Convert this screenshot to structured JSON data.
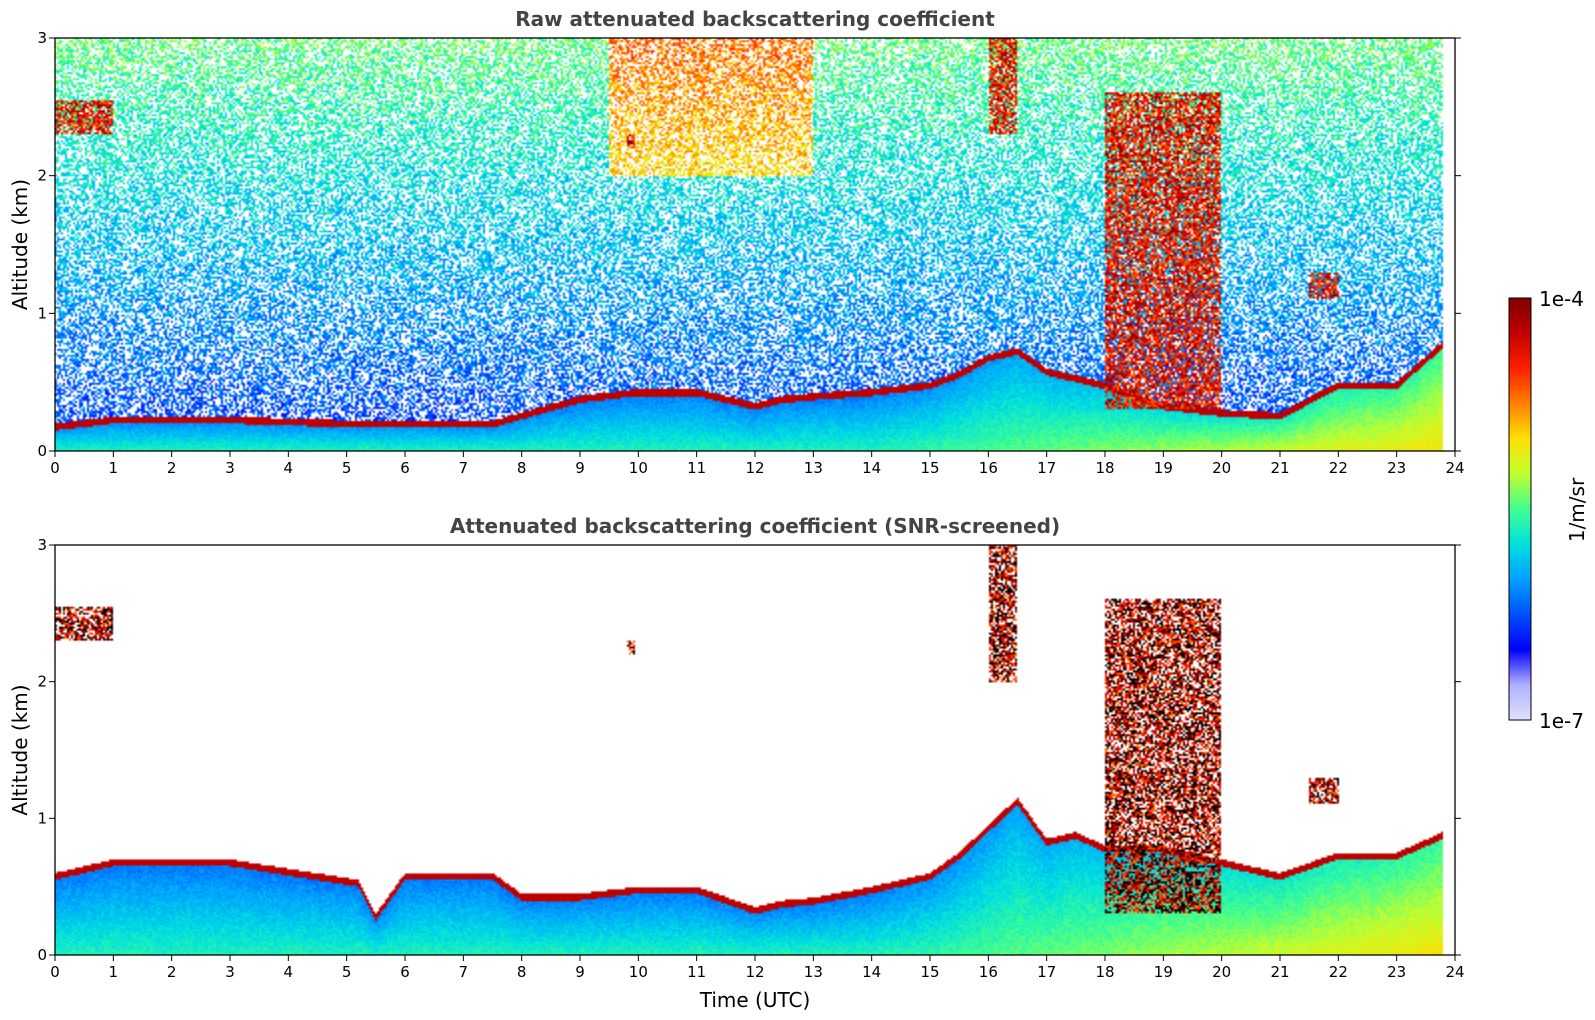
{
  "chart_data": [
    {
      "type": "heatmap",
      "title": "Raw attenuated backscattering coefficient",
      "xlabel": "",
      "ylabel": "Altitude (km)",
      "xlim": [
        0,
        24
      ],
      "ylim": [
        0,
        3
      ],
      "x_ticks": [
        0,
        1,
        2,
        3,
        4,
        5,
        6,
        7,
        8,
        9,
        10,
        11,
        12,
        13,
        14,
        15,
        16,
        17,
        18,
        19,
        20,
        21,
        22,
        23,
        24
      ],
      "y_ticks": [
        0,
        1,
        2,
        3
      ],
      "screened": false,
      "boundary_layer_top_km": [
        [
          0,
          0.2
        ],
        [
          1,
          0.25
        ],
        [
          3,
          0.25
        ],
        [
          5.2,
          0.22
        ],
        [
          5.5,
          0.22
        ],
        [
          6,
          0.22
        ],
        [
          7.5,
          0.22
        ],
        [
          8,
          0.28
        ],
        [
          9,
          0.4
        ],
        [
          10,
          0.45
        ],
        [
          11,
          0.45
        ],
        [
          12,
          0.35
        ],
        [
          12.5,
          0.4
        ],
        [
          13,
          0.42
        ],
        [
          14,
          0.45
        ],
        [
          15,
          0.5
        ],
        [
          15.5,
          0.58
        ],
        [
          16,
          0.7
        ],
        [
          16.5,
          0.75
        ],
        [
          17,
          0.6
        ],
        [
          17.5,
          0.55
        ],
        [
          18,
          0.5
        ],
        [
          19,
          0.35
        ],
        [
          20,
          0.3
        ],
        [
          21,
          0.28
        ],
        [
          22,
          0.5
        ],
        [
          23,
          0.5
        ],
        [
          23.8,
          0.8
        ]
      ],
      "cloud_layers": [
        {
          "x": [
            0,
            1
          ],
          "y": [
            2.3,
            2.55
          ]
        },
        {
          "x": [
            9.8,
            9.95
          ],
          "y": [
            2.2,
            2.3
          ]
        },
        {
          "x": [
            16,
            16.5
          ],
          "y": [
            2.3,
            3
          ]
        },
        {
          "x": [
            18,
            20
          ],
          "y": [
            0.3,
            2.6
          ]
        },
        {
          "x": [
            21.5,
            22
          ],
          "y": [
            1.1,
            1.3
          ]
        }
      ]
    },
    {
      "type": "heatmap",
      "title": "Attenuated backscattering coefficient (SNR-screened)",
      "xlabel": "Time (UTC)",
      "ylabel": "Altitude (km)",
      "xlim": [
        0,
        24
      ],
      "ylim": [
        0,
        3
      ],
      "x_ticks": [
        0,
        1,
        2,
        3,
        4,
        5,
        6,
        7,
        8,
        9,
        10,
        11,
        12,
        13,
        14,
        15,
        16,
        17,
        18,
        19,
        20,
        21,
        22,
        23,
        24
      ],
      "y_ticks": [
        0,
        1,
        2,
        3
      ],
      "screened": true,
      "boundary_layer_top_km": [
        [
          0,
          0.6
        ],
        [
          1,
          0.7
        ],
        [
          3,
          0.7
        ],
        [
          5.2,
          0.55
        ],
        [
          5.5,
          0.3
        ],
        [
          6,
          0.6
        ],
        [
          7.5,
          0.6
        ],
        [
          8,
          0.45
        ],
        [
          9,
          0.45
        ],
        [
          10,
          0.5
        ],
        [
          11,
          0.5
        ],
        [
          12,
          0.35
        ],
        [
          12.5,
          0.4
        ],
        [
          13,
          0.42
        ],
        [
          14,
          0.5
        ],
        [
          15,
          0.6
        ],
        [
          15.5,
          0.75
        ],
        [
          16,
          0.95
        ],
        [
          16.5,
          1.15
        ],
        [
          17,
          0.85
        ],
        [
          17.5,
          0.9
        ],
        [
          18,
          0.8
        ],
        [
          19,
          0.8
        ],
        [
          20,
          0.7
        ],
        [
          21,
          0.6
        ],
        [
          22,
          0.75
        ],
        [
          23,
          0.75
        ],
        [
          23.8,
          0.9
        ]
      ],
      "cloud_layers": [
        {
          "x": [
            0,
            1
          ],
          "y": [
            2.3,
            2.55
          ]
        },
        {
          "x": [
            9.8,
            9.95
          ],
          "y": [
            2.2,
            2.3
          ]
        },
        {
          "x": [
            16,
            16.5
          ],
          "y": [
            2.0,
            3
          ]
        },
        {
          "x": [
            18,
            20
          ],
          "y": [
            0.3,
            2.6
          ]
        },
        {
          "x": [
            21.5,
            22
          ],
          "y": [
            1.1,
            1.3
          ]
        }
      ]
    }
  ],
  "colorbar": {
    "max_label": "1e-4",
    "min_label": "1e-7",
    "unit": "1/m/sr",
    "scale": "log",
    "range": [
      1e-07,
      0.0001
    ],
    "colormap": [
      "#e0e0ff",
      "#b0b0ff",
      "#0000ff",
      "#0050ff",
      "#00a0ff",
      "#00e0e0",
      "#40ff90",
      "#c0ff30",
      "#ffe000",
      "#ff8000",
      "#ff2000",
      "#c00000",
      "#800000"
    ]
  }
}
